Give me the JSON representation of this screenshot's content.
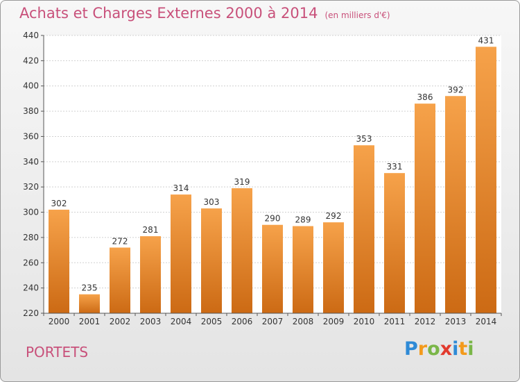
{
  "title": "Achats et Charges Externes 2000 à 2014",
  "subtitle": "(en milliers d'€)",
  "commune": "PORTETS",
  "brand": {
    "text": "Proxiti",
    "letters": [
      "P",
      "r",
      "o",
      "x",
      "i",
      "t",
      "i"
    ],
    "letter_colors": [
      "#2e8ad6",
      "#f39a1c",
      "#7ab648",
      "#e23a2e",
      "#2e8ad6",
      "#f39a1c",
      "#7ab648"
    ]
  },
  "chart_data": {
    "type": "bar",
    "categories": [
      "2000",
      "2001",
      "2002",
      "2003",
      "2004",
      "2005",
      "2006",
      "2007",
      "2008",
      "2009",
      "2010",
      "2011",
      "2012",
      "2013",
      "2014"
    ],
    "values": [
      302,
      235,
      272,
      281,
      314,
      303,
      319,
      290,
      289,
      292,
      353,
      331,
      386,
      392,
      431
    ],
    "title": "Achats et Charges Externes 2000 à 2014",
    "subtitle": "(en milliers d'€)",
    "ylim": [
      220,
      440
    ],
    "yticks": [
      220,
      240,
      260,
      280,
      300,
      320,
      340,
      360,
      380,
      400,
      420,
      440
    ],
    "grid": true,
    "bar_color_top": "#f6a24a",
    "bar_color_bottom": "#cc6a14"
  }
}
